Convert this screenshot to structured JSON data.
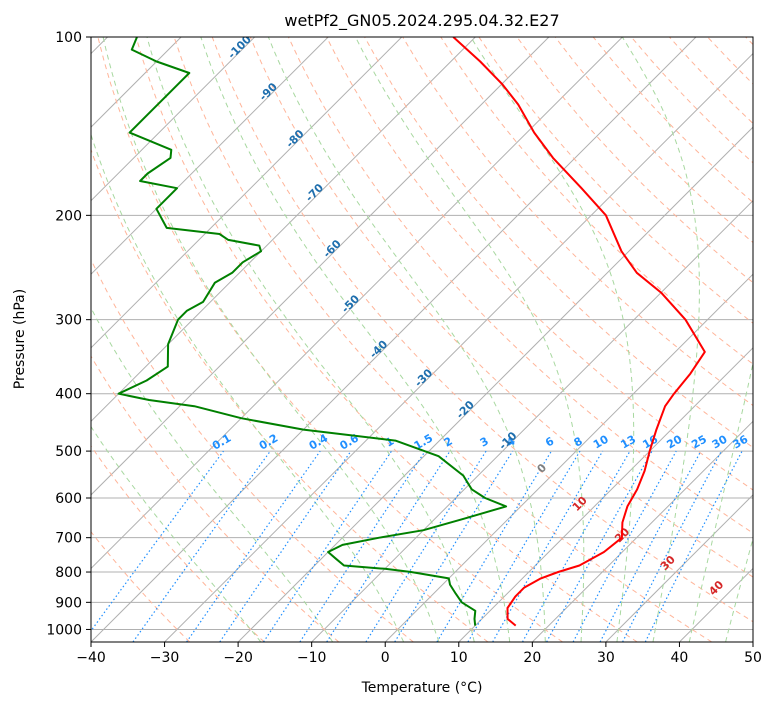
{
  "chart_data": {
    "type": "line",
    "title": "wetPf2_GN05.2024.295.04.32.E27",
    "xlabel": "Temperature (°C)",
    "ylabel": "Pressure (hPa)",
    "xlim": [
      -40,
      50
    ],
    "ylim": [
      1050,
      100
    ],
    "y_scale": "log",
    "grid": true,
    "x_ticks": [
      -40,
      -30,
      -20,
      -10,
      0,
      10,
      20,
      30,
      40,
      50
    ],
    "x_tick_labels": [
      "−40",
      "−30",
      "−20",
      "−10",
      "0",
      "10",
      "20",
      "30",
      "40",
      "50"
    ],
    "y_ticks": [
      100,
      200,
      300,
      400,
      500,
      600,
      700,
      800,
      900,
      1000
    ],
    "y_tick_labels": [
      "100",
      "200",
      "300",
      "400",
      "500",
      "600",
      "700",
      "800",
      "900",
      "1000"
    ],
    "colors": {
      "temperature": "#ff0000",
      "dewpoint": "#008000",
      "isotherm": "#b0b0b0",
      "dry_adiabat": "#ffb59a",
      "moist_adiabat": "#a8d8a0",
      "mixing_ratio": "#1f8fff",
      "wetbulb_labels": "#1f6fae",
      "red_labels": "#d62728"
    },
    "series": [
      {
        "key": "temperature",
        "pressure": [
          985,
          960,
          920,
          880,
          850,
          820,
          800,
          780,
          740,
          700,
          660,
          620,
          580,
          540,
          500,
          460,
          420,
          400,
          370,
          340,
          300,
          270,
          250,
          230,
          200,
          180,
          160,
          145,
          130,
          120,
          110,
          100
        ],
        "values": [
          15.5,
          13.5,
          12,
          11.5,
          11.5,
          12.5,
          14,
          16,
          17.5,
          18,
          16,
          14.5,
          13.5,
          12,
          10,
          8,
          6,
          5.5,
          5,
          4,
          -3,
          -10,
          -16,
          -21,
          -28,
          -35,
          -43,
          -49,
          -55,
          -60,
          -66,
          -73
        ]
      },
      {
        "key": "dewpoint",
        "pressure": [
          985,
          960,
          930,
          900,
          870,
          840,
          820,
          800,
          790,
          780,
          760,
          740,
          720,
          700,
          680,
          650,
          620,
          600,
          580,
          550,
          510,
          480,
          460,
          440,
          420,
          410,
          400,
          380,
          360,
          330,
          300,
          290,
          280,
          260,
          250,
          240,
          230,
          225,
          220,
          215,
          210,
          195,
          185,
          180,
          175,
          170,
          160,
          155,
          145,
          135,
          125,
          120,
          115,
          110,
          105,
          100
        ],
        "values": [
          10,
          9,
          8,
          5,
          3,
          1,
          0,
          -6,
          -10,
          -16,
          -18,
          -20,
          -19,
          -15,
          -10,
          -6,
          -2,
          -6,
          -9,
          -12,
          -18,
          -26,
          -40,
          -50,
          -58,
          -65,
          -70,
          -68,
          -67,
          -70,
          -72,
          -72,
          -71,
          -72,
          -71,
          -71,
          -70,
          -71,
          -76,
          -78,
          -86,
          -90,
          -90,
          -90,
          -96,
          -96,
          -95,
          -96,
          -104,
          -104,
          -104,
          -104,
          -104,
          -110,
          -115,
          -116
        ]
      }
    ],
    "isotherm_labels": [
      "-100",
      "-90",
      "-80",
      "-70",
      "-60",
      "-50",
      "-40",
      "-30",
      "-20",
      "-10"
    ],
    "mixing_ratio_labels": [
      "0.1",
      "0.2",
      "0.4",
      "0.6",
      "1",
      "1.5",
      "2",
      "3",
      "4",
      "6",
      "8",
      "10",
      "13",
      "16",
      "20",
      "25",
      "30",
      "36"
    ],
    "red_isotherm_labels": [
      "0",
      "10",
      "20",
      "30",
      "40"
    ]
  }
}
